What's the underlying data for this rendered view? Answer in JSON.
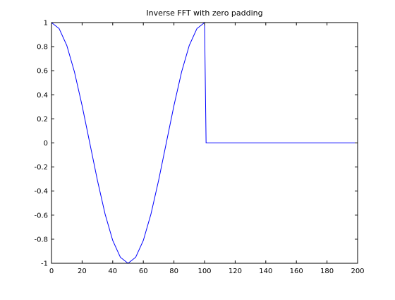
{
  "chart_data": {
    "type": "line",
    "title": "Inverse FFT with zero padding",
    "xlabel": "",
    "ylabel": "",
    "xlim": [
      0,
      200
    ],
    "ylim": [
      -1,
      1
    ],
    "grid": false,
    "legend": "none",
    "xticks": [
      "0",
      "20",
      "40",
      "60",
      "80",
      "100",
      "120",
      "140",
      "160",
      "180",
      "200"
    ],
    "yticks": [
      "-1",
      "-0.8",
      "-0.6",
      "-0.4",
      "-0.2",
      "0",
      "0.2",
      "0.4",
      "0.6",
      "0.8",
      "1"
    ],
    "line_color": "#0000ff",
    "series": [
      {
        "x": [
          0,
          5,
          10,
          15,
          20,
          25,
          30,
          35,
          40,
          45,
          50,
          55,
          60,
          65,
          70,
          75,
          80,
          85,
          90,
          95,
          100,
          101,
          105,
          110,
          115,
          120,
          125,
          130,
          135,
          140,
          145,
          150,
          155,
          160,
          165,
          170,
          175,
          180,
          185,
          190,
          195,
          200
        ],
        "y": [
          1,
          0.95,
          0.81,
          0.59,
          0.31,
          0.0,
          -0.31,
          -0.59,
          -0.81,
          -0.95,
          -1,
          -0.95,
          -0.81,
          -0.59,
          -0.31,
          0.0,
          0.31,
          0.59,
          0.81,
          0.95,
          1,
          0,
          0,
          0,
          0,
          0,
          0,
          0,
          0,
          0,
          0,
          0,
          0,
          0,
          0,
          0,
          0,
          0,
          0,
          0,
          0,
          0
        ]
      }
    ]
  }
}
